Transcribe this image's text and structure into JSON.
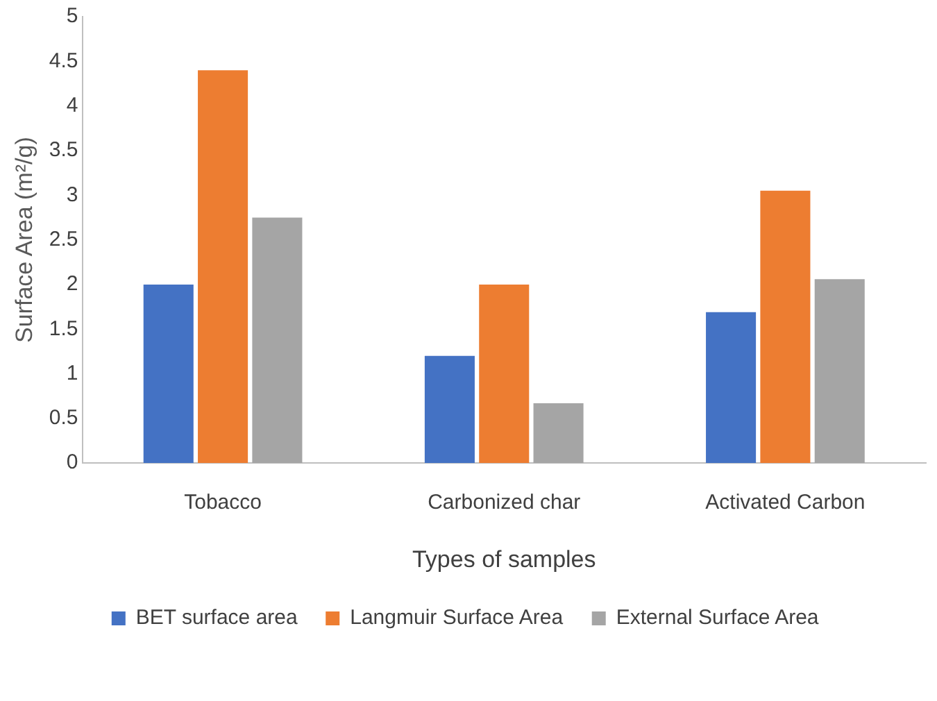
{
  "chart_data": {
    "type": "bar",
    "xlabel": "Types of samples",
    "ylabel": "Surface Area (m²/g)",
    "categories": [
      "Tobacco",
      "Carbonized char",
      "Activated Carbon"
    ],
    "series": [
      {
        "name": "BET surface area",
        "color": "#4472c4",
        "values": [
          2.0,
          1.2,
          1.69
        ]
      },
      {
        "name": "Langmuir Surface Area",
        "color": "#ed7d31",
        "values": [
          4.4,
          2.0,
          3.05
        ]
      },
      {
        "name": "External Surface Area",
        "color": "#a5a5a5",
        "values": [
          2.75,
          0.67,
          2.06
        ]
      }
    ],
    "ylim": [
      0,
      5
    ],
    "yticks": [
      0,
      0.5,
      1,
      1.5,
      2,
      2.5,
      3,
      3.5,
      4,
      4.5,
      5
    ],
    "grid": false,
    "legend": "bottom"
  }
}
